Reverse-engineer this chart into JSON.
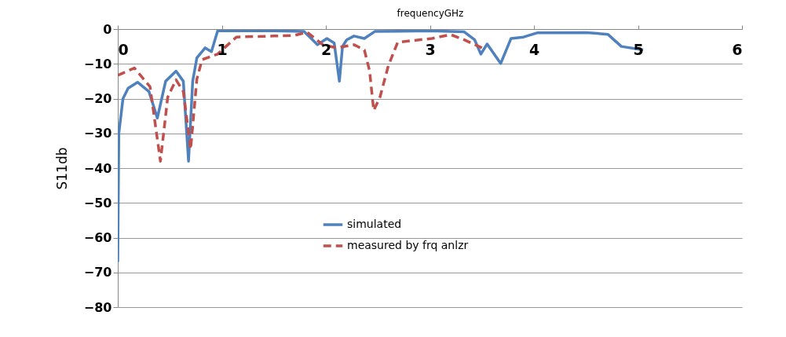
{
  "chart_data": {
    "type": "line",
    "xlabel": "frequencyGHz",
    "ylabel": "S11db",
    "xlim": [
      0,
      6
    ],
    "xticks": [
      0,
      1,
      2,
      3,
      4,
      5,
      6
    ],
    "ylim": [
      -80,
      0
    ],
    "yticks": [
      -80,
      -70,
      -60,
      -50,
      -40,
      -30,
      -20,
      -10,
      0
    ],
    "grid": "y",
    "legend": "bottom",
    "marker": "none",
    "series": [
      {
        "name": "simulated",
        "color": "#4f81bd",
        "line_style": "solid",
        "x": [
          0,
          0.01,
          0.05,
          0.1,
          0.19,
          0.3,
          0.38,
          0.46,
          0.56,
          0.63,
          0.68,
          0.72,
          0.76,
          0.84,
          0.9,
          0.96,
          1.0,
          1.5,
          1.79,
          1.92,
          2.01,
          2.08,
          2.13,
          2.16,
          2.2,
          2.27,
          2.37,
          2.47,
          3.0,
          3.33,
          3.43,
          3.49,
          3.55,
          3.68,
          3.78,
          3.9,
          4.03,
          4.5,
          4.71,
          4.84,
          5.05
        ],
        "values": [
          -67,
          -30,
          -20,
          -17,
          -15.3,
          -18,
          -25.6,
          -15,
          -12.1,
          -15,
          -38,
          -15,
          -8.3,
          -5.4,
          -6.5,
          -0.5,
          -0.5,
          -0.5,
          -0.7,
          -4.5,
          -2.7,
          -4,
          -15,
          -5,
          -3.1,
          -2,
          -2.7,
          -0.7,
          -0.5,
          -0.8,
          -3.1,
          -7.2,
          -4.3,
          -9.9,
          -2.7,
          -2.3,
          -1.1,
          -1,
          -1.5,
          -5,
          -6
        ]
      },
      {
        "name": "measured by frq anlzr",
        "color": "#c0504d",
        "line_style": "dashed",
        "x": [
          0,
          0.16,
          0.31,
          0.41,
          0.48,
          0.56,
          0.63,
          0.7,
          0.76,
          0.81,
          0.96,
          1.14,
          1.5,
          1.7,
          1.82,
          1.97,
          2.1,
          2.27,
          2.37,
          2.42,
          2.46,
          2.52,
          2.6,
          2.69,
          3.02,
          3.2,
          3.33,
          3.5
        ],
        "values": [
          -13.3,
          -11.2,
          -16.6,
          -38,
          -19.6,
          -14.6,
          -18,
          -34.6,
          -14.4,
          -8.8,
          -7.2,
          -2.3,
          -2,
          -1.8,
          -0.9,
          -4.5,
          -5.4,
          -4.5,
          -6,
          -12,
          -23.4,
          -19.6,
          -10.6,
          -3.8,
          -2.7,
          -1.6,
          -3.1,
          -5.4
        ]
      }
    ]
  }
}
